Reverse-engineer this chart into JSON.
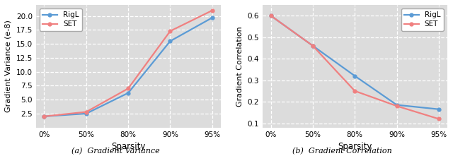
{
  "sparsity_labels": [
    "0%",
    "50%",
    "80%",
    "90%",
    "95%"
  ],
  "sparsity_x": [
    0,
    1,
    2,
    3,
    4
  ],
  "var_rigl": [
    2.0,
    2.5,
    6.2,
    15.5,
    19.7
  ],
  "var_set": [
    2.0,
    2.8,
    7.0,
    17.3,
    21.0
  ],
  "var_ylabel": "Gradient Variance (e-8)",
  "var_ylim": [
    0,
    22
  ],
  "var_yticks": [
    2.5,
    5.0,
    7.5,
    10.0,
    12.5,
    15.0,
    17.5,
    20.0
  ],
  "var_caption": "(a)  Gradient Variance",
  "corr_rigl": [
    0.6,
    0.46,
    0.32,
    0.185,
    0.165
  ],
  "corr_set": [
    0.6,
    0.46,
    0.25,
    0.18,
    0.12
  ],
  "corr_ylabel": "Gradient Correlation",
  "corr_ylim": [
    0.08,
    0.65
  ],
  "corr_yticks": [
    0.1,
    0.2,
    0.3,
    0.4,
    0.5,
    0.6
  ],
  "corr_caption": "(b)  Gradient Correlation",
  "color_rigl": "#5B9BD5",
  "color_set": "#F08080",
  "xlabel": "Sparsity",
  "legend_labels": [
    "RigL",
    "SET"
  ],
  "bg_color": "#DCDCDC",
  "grid_color": "white",
  "marker": "o",
  "markersize": 3.5,
  "linewidth": 1.6
}
